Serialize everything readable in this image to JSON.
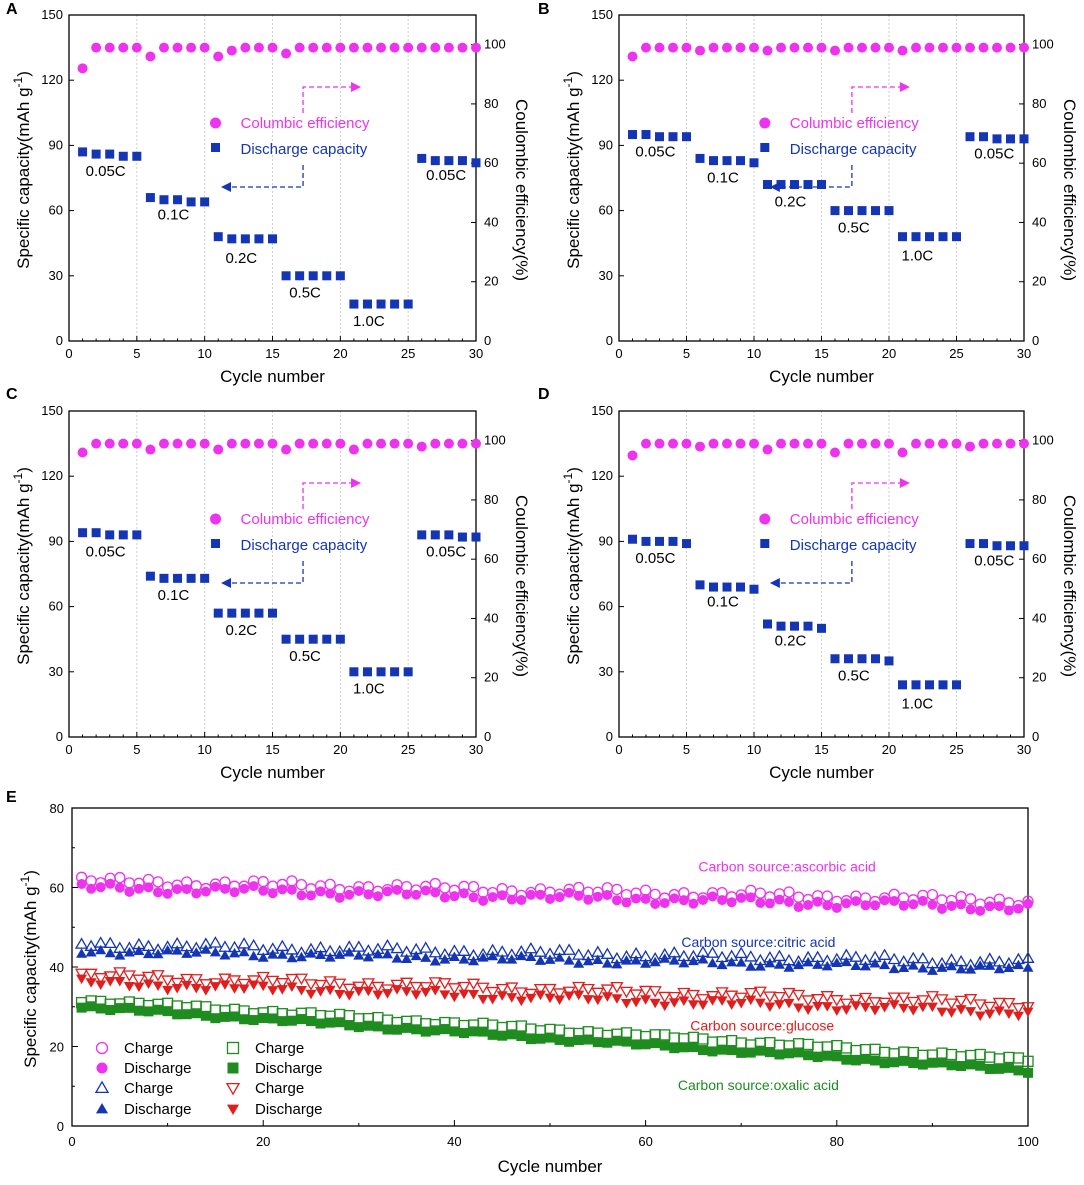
{
  "figure": {
    "y_axis_left": "Specific capacity(mAh g",
    "y_axis_left_sup": "-1",
    "y_axis_left_tail": ")",
    "y_axis_right": "Coulombic efficiency(%)",
    "x_axis": "Cycle number"
  },
  "colors": {
    "magenta": "#ee33ee",
    "blue": "#1436b4",
    "green": "#1e8c1e",
    "red": "#e01e1e",
    "grid": "#cccccc"
  },
  "chart_data": [
    {
      "type": "scatter",
      "panel": "A",
      "xlim": [
        0,
        30
      ],
      "ylim": [
        0,
        150
      ],
      "y2lim": [
        0,
        110
      ],
      "xticks": [
        0,
        5,
        10,
        15,
        20,
        25,
        30
      ],
      "yticks": [
        0,
        30,
        60,
        90,
        120,
        150
      ],
      "y2ticks": [
        0,
        20,
        40,
        60,
        80,
        100
      ],
      "legend": [
        "Columbic efficiency",
        "Discharge capacity"
      ],
      "rate_labels": [
        {
          "text": "0.05C",
          "x": 2.7,
          "y": 76
        },
        {
          "text": "0.1C",
          "x": 7.7,
          "y": 56
        },
        {
          "text": "0.2C",
          "x": 12.7,
          "y": 36
        },
        {
          "text": "0.5C",
          "x": 17.4,
          "y": 20
        },
        {
          "text": "1.0C",
          "x": 22.1,
          "y": 7
        },
        {
          "text": "0.05C",
          "x": 27.8,
          "y": 74
        }
      ],
      "efficiency": [
        92,
        99,
        99,
        99,
        99,
        96,
        99,
        99,
        99,
        99,
        96,
        98,
        99,
        99,
        99,
        97,
        99,
        99,
        99,
        99,
        99,
        99,
        99,
        99,
        99,
        99,
        99,
        99,
        99,
        99
      ],
      "capacity": [
        87,
        86,
        86,
        85,
        85,
        66,
        65,
        65,
        64,
        64,
        48,
        47,
        47,
        47,
        47,
        30,
        30,
        30,
        30,
        30,
        17,
        17,
        17,
        17,
        17,
        84,
        83,
        83,
        83,
        82
      ]
    },
    {
      "type": "scatter",
      "panel": "B",
      "xlim": [
        0,
        30
      ],
      "ylim": [
        0,
        150
      ],
      "y2lim": [
        0,
        110
      ],
      "xticks": [
        0,
        5,
        10,
        15,
        20,
        25,
        30
      ],
      "yticks": [
        0,
        30,
        60,
        90,
        120,
        150
      ],
      "y2ticks": [
        0,
        20,
        40,
        60,
        80,
        100
      ],
      "legend": [
        "Columbic efficiency",
        "Discharge capacity"
      ],
      "rate_labels": [
        {
          "text": "0.05C",
          "x": 2.7,
          "y": 85
        },
        {
          "text": "0.1C",
          "x": 7.7,
          "y": 73
        },
        {
          "text": "0.2C",
          "x": 12.7,
          "y": 62
        },
        {
          "text": "0.5C",
          "x": 17.4,
          "y": 50
        },
        {
          "text": "1.0C",
          "x": 22.1,
          "y": 37
        },
        {
          "text": "0.05C",
          "x": 27.8,
          "y": 84
        }
      ],
      "efficiency": [
        96,
        99,
        99,
        99,
        99,
        98,
        99,
        99,
        99,
        99,
        98,
        99,
        99,
        99,
        99,
        98,
        99,
        99,
        99,
        99,
        98,
        99,
        99,
        99,
        99,
        99,
        99,
        99,
        99,
        99
      ],
      "capacity": [
        95,
        95,
        94,
        94,
        94,
        84,
        83,
        83,
        83,
        82,
        72,
        72,
        72,
        72,
        72,
        60,
        60,
        60,
        60,
        60,
        48,
        48,
        48,
        48,
        48,
        94,
        94,
        93,
        93,
        93
      ]
    },
    {
      "type": "scatter",
      "panel": "C",
      "xlim": [
        0,
        30
      ],
      "ylim": [
        0,
        150
      ],
      "y2lim": [
        0,
        110
      ],
      "xticks": [
        0,
        5,
        10,
        15,
        20,
        25,
        30
      ],
      "yticks": [
        0,
        30,
        60,
        90,
        120,
        150
      ],
      "y2ticks": [
        0,
        20,
        40,
        60,
        80,
        100
      ],
      "legend": [
        "Columbic efficiency",
        "Discharge capacity"
      ],
      "rate_labels": [
        {
          "text": "0.05C",
          "x": 2.7,
          "y": 83
        },
        {
          "text": "0.1C",
          "x": 7.7,
          "y": 63
        },
        {
          "text": "0.2C",
          "x": 12.7,
          "y": 47
        },
        {
          "text": "0.5C",
          "x": 17.4,
          "y": 35
        },
        {
          "text": "1.0C",
          "x": 22.1,
          "y": 20
        },
        {
          "text": "0.05C",
          "x": 27.8,
          "y": 83
        }
      ],
      "efficiency": [
        96,
        99,
        99,
        99,
        99,
        97,
        99,
        99,
        99,
        99,
        97,
        99,
        99,
        99,
        99,
        97,
        99,
        99,
        99,
        99,
        97,
        99,
        99,
        99,
        99,
        98,
        99,
        99,
        99,
        99
      ],
      "capacity": [
        94,
        94,
        93,
        93,
        93,
        74,
        73,
        73,
        73,
        73,
        57,
        57,
        57,
        57,
        57,
        45,
        45,
        45,
        45,
        45,
        30,
        30,
        30,
        30,
        30,
        93,
        93,
        93,
        92,
        92
      ]
    },
    {
      "type": "scatter",
      "panel": "D",
      "xlim": [
        0,
        30
      ],
      "ylim": [
        0,
        150
      ],
      "y2lim": [
        0,
        110
      ],
      "xticks": [
        0,
        5,
        10,
        15,
        20,
        25,
        30
      ],
      "yticks": [
        0,
        30,
        60,
        90,
        120,
        150
      ],
      "y2ticks": [
        0,
        20,
        40,
        60,
        80,
        100
      ],
      "legend": [
        "Columbic efficiency",
        "Discharge capacity"
      ],
      "rate_labels": [
        {
          "text": "0.05C",
          "x": 2.7,
          "y": 80
        },
        {
          "text": "0.1C",
          "x": 7.7,
          "y": 60
        },
        {
          "text": "0.2C",
          "x": 12.7,
          "y": 42
        },
        {
          "text": "0.5C",
          "x": 17.4,
          "y": 26
        },
        {
          "text": "1.0C",
          "x": 22.1,
          "y": 13
        },
        {
          "text": "0.05C",
          "x": 27.8,
          "y": 79
        }
      ],
      "efficiency": [
        95,
        99,
        99,
        99,
        99,
        98,
        99,
        99,
        99,
        99,
        97,
        99,
        99,
        99,
        99,
        96,
        99,
        99,
        99,
        99,
        96,
        99,
        99,
        99,
        99,
        98,
        99,
        99,
        99,
        99
      ],
      "capacity": [
        91,
        90,
        90,
        90,
        89,
        70,
        69,
        69,
        69,
        68,
        52,
        51,
        51,
        51,
        50,
        36,
        36,
        36,
        36,
        35,
        24,
        24,
        24,
        24,
        24,
        89,
        89,
        88,
        88,
        88
      ]
    },
    {
      "type": "scatter",
      "panel": "E",
      "xlim": [
        0,
        100
      ],
      "ylim": [
        0,
        80
      ],
      "xticks": [
        0,
        20,
        40,
        60,
        80,
        100
      ],
      "yticks": [
        0,
        20,
        40,
        60,
        80
      ],
      "series_labels": [
        {
          "text": "Carbon source:ascorbic acid",
          "color_key": "magenta",
          "x": 74.8,
          "y": 64
        },
        {
          "text": "Carbon source:citric acid",
          "color_key": "blue",
          "x": 71.8,
          "y": 45
        },
        {
          "text": "Carbon source:glucose",
          "color_key": "red",
          "x": 72.2,
          "y": 24
        },
        {
          "text": "Carbon source:oxalic acid",
          "color_key": "green",
          "x": 71.8,
          "y": 9
        }
      ],
      "legend": [
        {
          "label": "Charge",
          "marker": "circle-open",
          "color_key": "magenta"
        },
        {
          "label": "Discharge",
          "marker": "circle-filled",
          "color_key": "magenta"
        },
        {
          "label": "Charge",
          "marker": "triangle-open",
          "color_key": "blue"
        },
        {
          "label": "Discharge",
          "marker": "triangle-filled",
          "color_key": "blue"
        },
        {
          "label": "Charge",
          "marker": "square-open",
          "color_key": "green"
        },
        {
          "label": "Discharge",
          "marker": "square-filled",
          "color_key": "green"
        },
        {
          "label": "Charge",
          "marker": "invtriangle-open",
          "color_key": "red"
        },
        {
          "label": "Discharge",
          "marker": "invtriangle-filled",
          "color_key": "red"
        }
      ],
      "series": [
        {
          "name": "ascorbic acid charge",
          "marker": "circle-open",
          "color_key": "magenta",
          "start": 61,
          "end": 56,
          "jitter": 0.8,
          "offset": 0.6
        },
        {
          "name": "ascorbic acid discharge",
          "marker": "circle-filled",
          "color_key": "magenta",
          "start": 60,
          "end": 55,
          "jitter": 0.8,
          "offset": 0
        },
        {
          "name": "citric acid charge",
          "marker": "triangle-open",
          "color_key": "blue",
          "start": 45,
          "end": 40.5,
          "jitter": 0.7,
          "offset": 0.7
        },
        {
          "name": "citric acid discharge",
          "marker": "triangle-filled",
          "color_key": "blue",
          "start": 44,
          "end": 39.5,
          "jitter": 0.6,
          "offset": 0
        },
        {
          "name": "oxalic acid charge",
          "marker": "square-open",
          "color_key": "green",
          "start": 31,
          "end": 16,
          "jitter": 0.4,
          "offset": 0.6
        },
        {
          "name": "oxalic acid discharge",
          "marker": "square-filled",
          "color_key": "green",
          "start": 30,
          "end": 14,
          "jitter": 0.4,
          "offset": 0
        },
        {
          "name": "glucose charge",
          "marker": "invtriangle-open",
          "color_key": "red",
          "start": 37,
          "end": 30,
          "jitter": 0.8,
          "offset": 0.8
        },
        {
          "name": "glucose discharge",
          "marker": "invtriangle-filled",
          "color_key": "red",
          "start": 36,
          "end": 28.5,
          "jitter": 0.7,
          "offset": 0
        }
      ],
      "points_per_series": 100
    }
  ]
}
